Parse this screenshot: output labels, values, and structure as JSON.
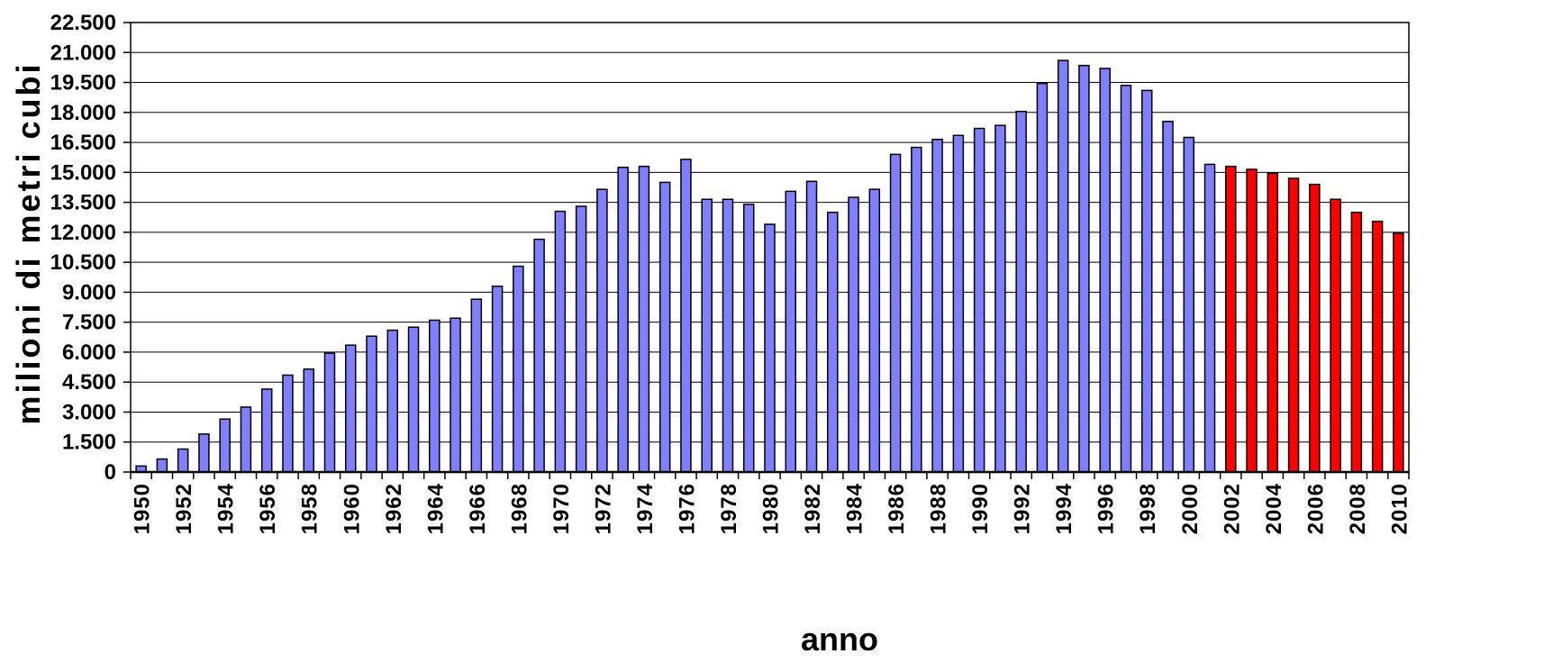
{
  "chart_data": {
    "type": "bar",
    "title": "",
    "xlabel": "anno",
    "ylabel": "milioni di metri cubi",
    "ylim": [
      0,
      22500
    ],
    "ytick_values": [
      0,
      1500,
      3000,
      4500,
      6000,
      7500,
      9000,
      10500,
      12000,
      13500,
      15000,
      16500,
      18000,
      19500,
      21000,
      22500
    ],
    "ytick_labels": [
      "0",
      "1.500",
      "3.000",
      "4.500",
      "6.000",
      "7.500",
      "9.000",
      "10.500",
      "12.000",
      "13.500",
      "15.000",
      "16.500",
      "18.000",
      "19.500",
      "21.000",
      "22.500"
    ],
    "grid": true,
    "legend": "none",
    "categories": [
      "1950",
      "1951",
      "1952",
      "1953",
      "1954",
      "1955",
      "1956",
      "1957",
      "1958",
      "1959",
      "1960",
      "1961",
      "1962",
      "1963",
      "1964",
      "1965",
      "1966",
      "1967",
      "1968",
      "1969",
      "1970",
      "1971",
      "1972",
      "1973",
      "1974",
      "1975",
      "1976",
      "1977",
      "1978",
      "1979",
      "1980",
      "1981",
      "1982",
      "1983",
      "1984",
      "1985",
      "1986",
      "1987",
      "1988",
      "1989",
      "1990",
      "1991",
      "1992",
      "1993",
      "1994",
      "1995",
      "1996",
      "1997",
      "1998",
      "1999",
      "2000",
      "2001",
      "2002",
      "2003",
      "2004",
      "2005",
      "2006",
      "2007",
      "2008",
      "2009",
      "2010"
    ],
    "xtick_labels": [
      "1950",
      "1952",
      "1954",
      "1956",
      "1958",
      "1960",
      "1962",
      "1964",
      "1966",
      "1968",
      "1970",
      "1972",
      "1974",
      "1976",
      "1978",
      "1980",
      "1982",
      "1984",
      "1986",
      "1988",
      "1990",
      "1992",
      "1994",
      "1996",
      "1998",
      "2000",
      "2002",
      "2004",
      "2006",
      "2008",
      "2010"
    ],
    "values": [
      300,
      650,
      1150,
      1900,
      2650,
      3250,
      4150,
      4850,
      5150,
      5950,
      6350,
      6800,
      7100,
      7250,
      7600,
      7700,
      8650,
      9300,
      10300,
      11650,
      13050,
      13300,
      14150,
      15250,
      15300,
      14500,
      15650,
      13650,
      13650,
      13400,
      12400,
      14050,
      14550,
      13000,
      13750,
      14150,
      15900,
      16250,
      16650,
      16850,
      17200,
      17350,
      18050,
      19450,
      20600,
      20350,
      20200,
      19350,
      19100,
      17550,
      16750,
      15400,
      15300,
      15150,
      14950,
      14700,
      14400,
      13650,
      13000,
      12550,
      11950
    ],
    "colors": {
      "historical": "#8080FF",
      "highlight": "#FF0000",
      "highlight_from": "2002",
      "grid": "#000000",
      "border": "#000000"
    }
  }
}
